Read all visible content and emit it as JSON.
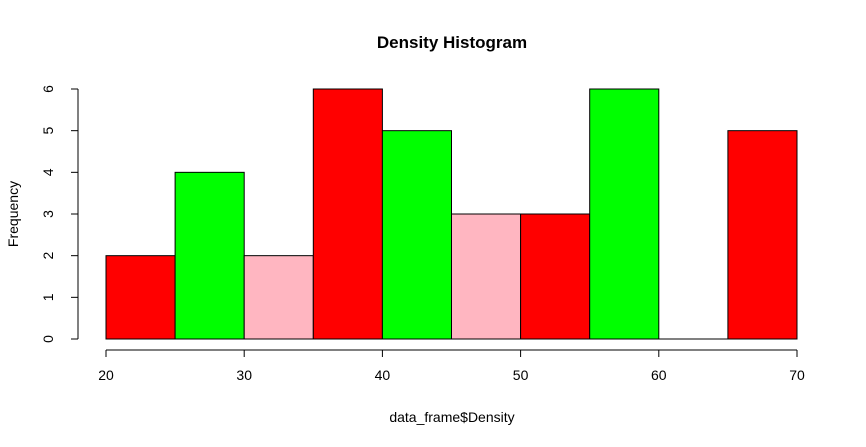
{
  "chart_data": {
    "type": "bar",
    "title": "Density Histogram",
    "xlabel": "data_frame$Density",
    "ylabel": "Frequency",
    "bins": [
      {
        "from": 20,
        "to": 25,
        "count": 2,
        "color": "#ff0000"
      },
      {
        "from": 25,
        "to": 30,
        "count": 4,
        "color": "#00ff00"
      },
      {
        "from": 30,
        "to": 35,
        "count": 2,
        "color": "#ffb6c1"
      },
      {
        "from": 35,
        "to": 40,
        "count": 6,
        "color": "#ff0000"
      },
      {
        "from": 40,
        "to": 45,
        "count": 5,
        "color": "#00ff00"
      },
      {
        "from": 45,
        "to": 50,
        "count": 3,
        "color": "#ffb6c1"
      },
      {
        "from": 50,
        "to": 55,
        "count": 3,
        "color": "#ff0000"
      },
      {
        "from": 55,
        "to": 60,
        "count": 6,
        "color": "#00ff00"
      },
      {
        "from": 60,
        "to": 65,
        "count": 0,
        "color": "#ffb6c1"
      },
      {
        "from": 65,
        "to": 70,
        "count": 5,
        "color": "#ff0000"
      }
    ],
    "xlim": [
      20,
      70
    ],
    "ylim": [
      0,
      6
    ],
    "x_ticks": [
      20,
      30,
      40,
      50,
      60,
      70
    ],
    "y_ticks": [
      0,
      1,
      2,
      3,
      4,
      5,
      6
    ],
    "grid": false
  }
}
